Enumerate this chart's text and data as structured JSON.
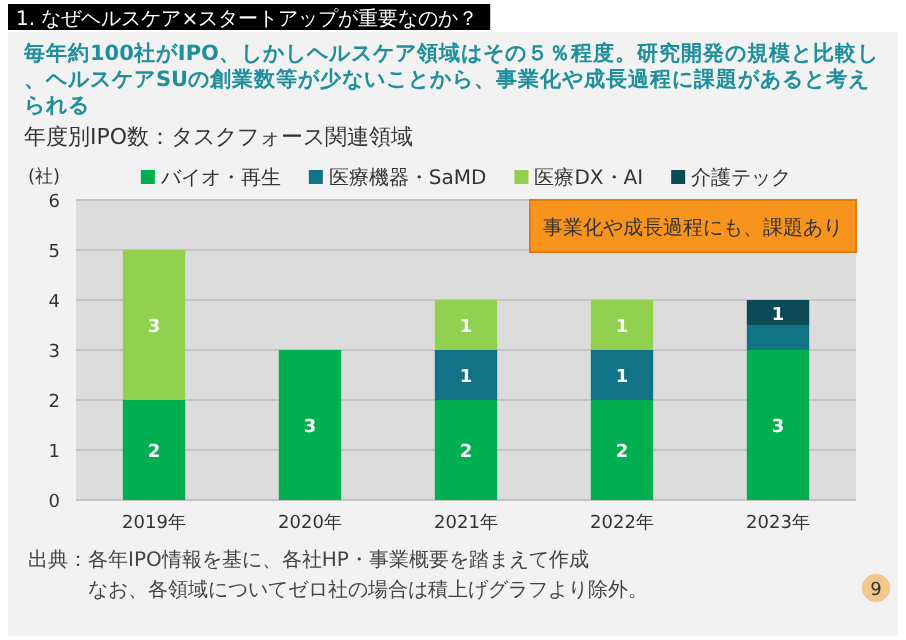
{
  "chart_data": {
    "type": "bar",
    "stacked": true,
    "title": "毎年約100社がIPO、しかしヘルスケア領域はその５％程度。研究開発の規模と比較し、ヘルスケアSUの創業数等が少ないことから、事業化や成長過程に課題があると考えられる",
    "subtitle": "年度別IPO数：タスクフォース関連領域",
    "ylabel": "(社)",
    "categories": [
      "2019年",
      "2020年",
      "2021年",
      "2022年",
      "2023年"
    ],
    "series": [
      {
        "name": "バイオ・再生",
        "color": "#00b050",
        "values": [
          2,
          3,
          2,
          2,
          3
        ],
        "value_labels": [
          "2",
          "3",
          "2",
          "2",
          "3"
        ]
      },
      {
        "name": "医療機器・SaMD",
        "color": "#127286",
        "values": [
          null,
          null,
          1,
          1,
          0.5
        ],
        "value_labels": [
          null,
          null,
          "1",
          "1",
          null
        ]
      },
      {
        "name": "医療DX・AI",
        "color": "#92d050",
        "values": [
          3,
          null,
          1,
          1,
          null
        ],
        "value_labels": [
          "3",
          null,
          "1",
          "1",
          null
        ]
      },
      {
        "name": "介護テック",
        "color": "#0d4a57",
        "values": [
          null,
          null,
          null,
          null,
          0.5
        ],
        "value_labels": [
          null,
          null,
          null,
          null,
          "1"
        ]
      }
    ],
    "ylim": [
      0,
      6
    ],
    "yticks": [
      0,
      1,
      2,
      3,
      4,
      5,
      6
    ],
    "grid": "y",
    "legend": "top",
    "annotations": [
      "1. なぜヘルスケア×スタートアップが重要なのか？",
      "事業化や成長過程にも、課題あり",
      "出典：各年IPO情報を基に、各社HP・事業概要を踏まえて作成",
      "なお、各領域についてゼロ社の場合は積上げグラフより除外。",
      "9"
    ]
  }
}
